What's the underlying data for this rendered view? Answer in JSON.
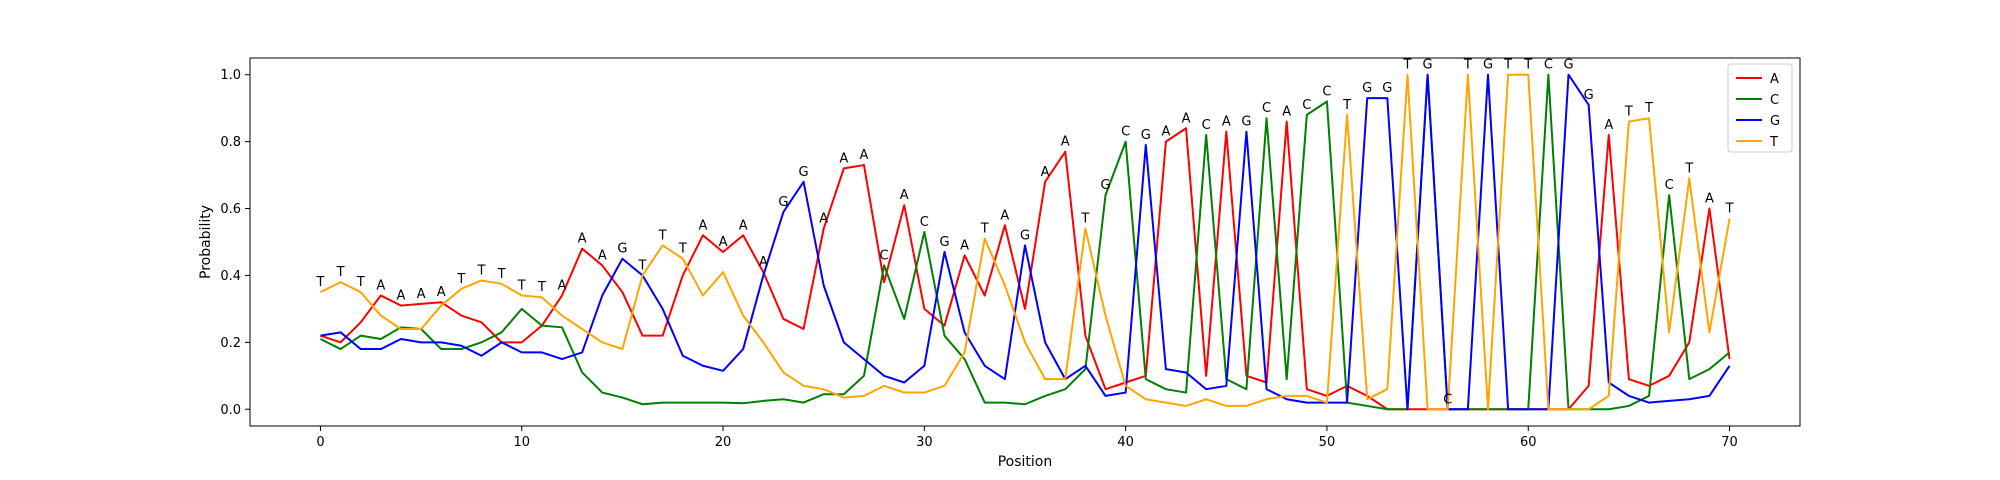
{
  "chart_data": {
    "type": "line",
    "title": "",
    "xlabel": "Position",
    "ylabel": "Probability",
    "xlim": [
      -3.5,
      73.5
    ],
    "ylim": [
      -0.05,
      1.05
    ],
    "xticks": [
      0,
      10,
      20,
      30,
      40,
      50,
      60,
      70
    ],
    "yticks": [
      0.0,
      0.2,
      0.4,
      0.6,
      0.8,
      1.0
    ],
    "grid": false,
    "legend_position": "top-right",
    "series": [
      {
        "name": "A",
        "color": "#ff0000",
        "values": [
          0.22,
          0.2,
          0.26,
          0.34,
          0.31,
          0.315,
          0.32,
          0.28,
          0.26,
          0.2,
          0.2,
          0.25,
          0.34,
          0.48,
          0.43,
          0.35,
          0.22,
          0.22,
          0.4,
          0.52,
          0.47,
          0.52,
          0.41,
          0.27,
          0.24,
          0.54,
          0.72,
          0.73,
          0.38,
          0.61,
          0.3,
          0.25,
          0.46,
          0.34,
          0.55,
          0.3,
          0.68,
          0.77,
          0.22,
          0.06,
          0.08,
          0.1,
          0.8,
          0.84,
          0.1,
          0.83,
          0.1,
          0.08,
          0.86,
          0.06,
          0.04,
          0.07,
          0.04,
          0.0,
          0.0,
          0.0,
          0.0,
          0.0,
          0.0,
          0.0,
          0.0,
          0.0,
          0.0,
          0.07,
          0.82,
          0.09,
          0.07,
          0.1,
          0.2,
          0.6,
          0.15
        ]
      },
      {
        "name": "C",
        "color": "#008000",
        "values": [
          0.21,
          0.18,
          0.22,
          0.21,
          0.245,
          0.24,
          0.18,
          0.18,
          0.2,
          0.23,
          0.3,
          0.25,
          0.245,
          0.11,
          0.05,
          0.035,
          0.015,
          0.02,
          0.02,
          0.02,
          0.02,
          0.018,
          0.025,
          0.03,
          0.02,
          0.045,
          0.045,
          0.1,
          0.43,
          0.27,
          0.53,
          0.22,
          0.15,
          0.02,
          0.02,
          0.015,
          0.04,
          0.06,
          0.12,
          0.64,
          0.8,
          0.09,
          0.06,
          0.05,
          0.82,
          0.09,
          0.06,
          0.87,
          0.09,
          0.88,
          0.92,
          0.02,
          0.01,
          0.0,
          0.0,
          1.0,
          0.0,
          0.0,
          0.0,
          0.0,
          0.0,
          1.0,
          0.0,
          0.0,
          0.0,
          0.01,
          0.04,
          0.64,
          0.09,
          0.12,
          0.17
        ]
      },
      {
        "name": "G",
        "color": "#0000ff",
        "values": [
          0.22,
          0.23,
          0.18,
          0.18,
          0.21,
          0.2,
          0.2,
          0.19,
          0.16,
          0.2,
          0.17,
          0.17,
          0.15,
          0.17,
          0.34,
          0.45,
          0.4,
          0.3,
          0.16,
          0.13,
          0.115,
          0.18,
          0.4,
          0.59,
          0.68,
          0.37,
          0.2,
          0.15,
          0.1,
          0.08,
          0.13,
          0.47,
          0.23,
          0.13,
          0.09,
          0.49,
          0.2,
          0.09,
          0.13,
          0.04,
          0.05,
          0.79,
          0.12,
          0.11,
          0.06,
          0.07,
          0.83,
          0.06,
          0.03,
          0.02,
          0.02,
          0.02,
          0.93,
          0.93,
          0.0,
          1.0,
          0.0,
          0.0,
          1.0,
          0.0,
          0.0,
          0.0,
          1.0,
          0.91,
          0.08,
          0.04,
          0.02,
          0.025,
          0.03,
          0.04,
          0.13
        ]
      },
      {
        "name": "T",
        "color": "#ffa500",
        "values": [
          0.35,
          0.38,
          0.35,
          0.28,
          0.24,
          0.24,
          0.31,
          0.36,
          0.385,
          0.375,
          0.34,
          0.335,
          0.28,
          0.24,
          0.2,
          0.18,
          0.4,
          0.49,
          0.45,
          0.34,
          0.41,
          0.28,
          0.2,
          0.11,
          0.07,
          0.06,
          0.035,
          0.04,
          0.07,
          0.05,
          0.05,
          0.07,
          0.17,
          0.51,
          0.37,
          0.2,
          0.09,
          0.09,
          0.54,
          0.28,
          0.07,
          0.03,
          0.02,
          0.01,
          0.03,
          0.01,
          0.01,
          0.03,
          0.04,
          0.04,
          0.02,
          0.88,
          0.03,
          0.06,
          1.0,
          0.0,
          0.0,
          1.0,
          0.0,
          1.0,
          1.0,
          0.0,
          0.0,
          0.0,
          0.04,
          0.86,
          0.87,
          0.23,
          0.69,
          0.23,
          0.57
        ]
      }
    ],
    "annotations": [
      "T",
      "T",
      "T",
      "A",
      "A",
      "A",
      "A",
      "T",
      "T",
      "T",
      "T",
      "T",
      "A",
      "A",
      "A",
      "G",
      "T",
      "T",
      "T",
      "A",
      "A",
      "A",
      "A",
      "G",
      "G",
      "A",
      "A",
      "A",
      "C",
      "A",
      "C",
      "G",
      "A",
      "T",
      "A",
      "G",
      "A",
      "A",
      "T",
      "G",
      "C",
      "G",
      "A",
      "A",
      "C",
      "A",
      "G",
      "C",
      "A",
      "C",
      "C",
      "T",
      "G",
      "G",
      "T",
      "G",
      "C",
      "T",
      "G",
      "T",
      "T",
      "C",
      "G",
      "G",
      "A",
      "T",
      "T",
      "C",
      "T",
      "A",
      "T"
    ]
  }
}
